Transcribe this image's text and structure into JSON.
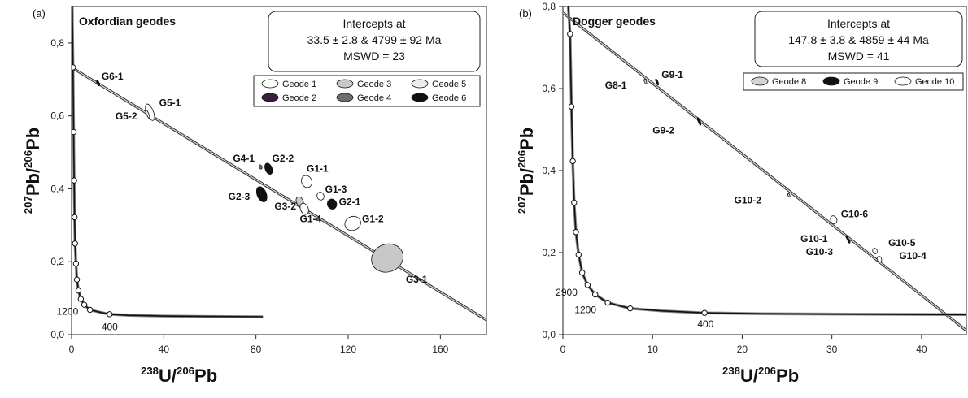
{
  "chart_data": [
    {
      "type": "scatter",
      "panel_label": "(a)",
      "title": "Oxfordian geodes",
      "xlabel": {
        "sup": "238",
        "main": "U/",
        "sup2": "206",
        "main2": "Pb"
      },
      "ylabel": {
        "sup": "207",
        "main": "Pb/",
        "sup2": "206",
        "main2": "Pb"
      },
      "xlim": [
        0,
        180
      ],
      "ylim": [
        0,
        0.9
      ],
      "xticks": [
        {
          "v": 0,
          "t": "0"
        },
        {
          "v": 40,
          "t": "40"
        },
        {
          "v": 80,
          "t": "80"
        },
        {
          "v": 120,
          "t": "120"
        },
        {
          "v": 160,
          "t": "160"
        }
      ],
      "yticks": [
        {
          "v": 0,
          "t": "0,0"
        },
        {
          "v": 0.2,
          "t": "0,2"
        },
        {
          "v": 0.4,
          "t": "0,4"
        },
        {
          "v": 0.6,
          "t": "0,6"
        },
        {
          "v": 0.8,
          "t": "0,8"
        }
      ],
      "intercepts_box": [
        "Intercepts at",
        "33.5 ± 2.8 & 4799 ± 92 Ma",
        "MSWD = 23"
      ],
      "discordia": {
        "start": [
          0,
          0.733
        ],
        "end": [
          180,
          0.04
        ]
      },
      "concordia": [
        [
          0.3,
          0.9
        ],
        [
          0.6,
          0.733
        ],
        [
          0.9,
          0.556
        ],
        [
          1.1,
          0.423
        ],
        [
          1.3,
          0.322
        ],
        [
          1.5,
          0.25
        ],
        [
          1.9,
          0.195
        ],
        [
          2.3,
          0.151
        ],
        [
          3.0,
          0.121
        ],
        [
          4.0,
          0.098
        ],
        [
          5.5,
          0.082
        ],
        [
          8.0,
          0.068
        ],
        [
          12,
          0.062
        ],
        [
          16.5,
          0.056
        ],
        [
          25,
          0.053
        ],
        [
          40,
          0.051
        ],
        [
          60,
          0.05
        ],
        [
          83,
          0.049
        ]
      ],
      "concordia_markers": [
        [
          0.6,
          0.733
        ],
        [
          0.9,
          0.556
        ],
        [
          1.1,
          0.423
        ],
        [
          1.3,
          0.322
        ],
        [
          1.5,
          0.25
        ],
        [
          1.9,
          0.195
        ],
        [
          2.3,
          0.151
        ],
        [
          3.0,
          0.121
        ],
        [
          4.0,
          0.098
        ],
        [
          5.5,
          0.082
        ],
        [
          8.0,
          0.068
        ],
        [
          16.5,
          0.056
        ]
      ],
      "age_labels": [
        {
          "t": "1200",
          "x": -6.5,
          "y": 0.055
        },
        {
          "t": "400",
          "x": 13,
          "y": 0.012
        }
      ],
      "legend": {
        "position": "top-right",
        "entries": [
          {
            "name": "Geode 1",
            "fill": "#ffffff"
          },
          {
            "name": "Geode 3",
            "fill": "#c8c8c8"
          },
          {
            "name": "Geode 5",
            "fill": "#ececec"
          },
          {
            "name": "Geode 2",
            "fill": "#3a1e3e"
          },
          {
            "name": "Geode 4",
            "fill": "#6e6e6e"
          },
          {
            "name": "Geode 6",
            "fill": "#111111"
          }
        ]
      },
      "points": [
        {
          "label": "G6-1",
          "x": 11.5,
          "y": 0.69,
          "rx": 0.5,
          "ry": 0.008,
          "fill": "#111111",
          "lx": 13,
          "ly": 0.7
        },
        {
          "label": "G5-1",
          "x": 34,
          "y": 0.61,
          "rx": 1.5,
          "ry": 0.024,
          "fill": "#ffffff",
          "lx": 38,
          "ly": 0.627
        },
        {
          "label": "G5-2",
          "x": 33,
          "y": 0.605,
          "rx": 0.5,
          "ry": 0.012,
          "fill": "#ececec",
          "lx": 19,
          "ly": 0.59
        },
        {
          "label": "G4-1",
          "x": 82,
          "y": 0.46,
          "rx": 0.6,
          "ry": 0.006,
          "fill": "#6e6e6e",
          "lx": 70,
          "ly": 0.475
        },
        {
          "label": "G2-2",
          "x": 85.5,
          "y": 0.455,
          "rx": 1.5,
          "ry": 0.016,
          "fill": "#111111",
          "lx": 87,
          "ly": 0.475
        },
        {
          "label": "G1-1",
          "x": 102,
          "y": 0.42,
          "rx": 2.2,
          "ry": 0.017,
          "fill": "#ffffff",
          "lx": 102,
          "ly": 0.447
        },
        {
          "label": "G2-3",
          "x": 82.5,
          "y": 0.385,
          "rx": 2,
          "ry": 0.022,
          "fill": "#111111",
          "lx": 68,
          "ly": 0.37
        },
        {
          "label": "G1-3",
          "x": 108,
          "y": 0.38,
          "rx": 1.5,
          "ry": 0.011,
          "fill": "#ffffff",
          "lx": 110,
          "ly": 0.39
        },
        {
          "label": "G3-2",
          "x": 99,
          "y": 0.365,
          "rx": 1.5,
          "ry": 0.014,
          "fill": "#c8c8c8",
          "lx": 88,
          "ly": 0.343
        },
        {
          "label": "G2-1",
          "x": 113,
          "y": 0.358,
          "rx": 2,
          "ry": 0.014,
          "fill": "#111111",
          "lx": 116,
          "ly": 0.355
        },
        {
          "label": "G1-4",
          "x": 101,
          "y": 0.345,
          "rx": 1.7,
          "ry": 0.016,
          "fill": "#ffffff",
          "lx": 99,
          "ly": 0.308
        },
        {
          "label": "G1-2",
          "x": 122,
          "y": 0.305,
          "rx": 3.5,
          "ry": 0.019,
          "fill": "#ffffff",
          "lx": 126,
          "ly": 0.308
        },
        {
          "label": "G3-1",
          "x": 137,
          "y": 0.21,
          "rx": 7,
          "ry": 0.038,
          "fill": "#c8c8c8",
          "lx": 145,
          "ly": 0.143
        }
      ]
    },
    {
      "type": "scatter",
      "panel_label": "(b)",
      "title": "Dogger geodes",
      "xlabel": {
        "sup": "238",
        "main": "U/",
        "sup2": "206",
        "main2": "Pb"
      },
      "ylabel": {
        "sup": "207",
        "main": "Pb/",
        "sup2": "206",
        "main2": "Pb"
      },
      "xlim": [
        0,
        45
      ],
      "ylim": [
        0,
        0.8
      ],
      "xticks": [
        {
          "v": 0,
          "t": "0"
        },
        {
          "v": 10,
          "t": "10"
        },
        {
          "v": 20,
          "t": "20"
        },
        {
          "v": 30,
          "t": "30"
        },
        {
          "v": 40,
          "t": "40"
        }
      ],
      "yticks": [
        {
          "v": 0,
          "t": "0,0"
        },
        {
          "v": 0.2,
          "t": "0,2"
        },
        {
          "v": 0.4,
          "t": "0,4"
        },
        {
          "v": 0.6,
          "t": "0,6"
        },
        {
          "v": 0.8,
          "t": "0,8"
        }
      ],
      "intercepts_box": [
        "Intercepts at",
        "147.8 ± 3.8 & 4859 ± 44 Ma",
        "MSWD = 41"
      ],
      "discordia": {
        "start": [
          0,
          0.785
        ],
        "end": [
          45,
          0.01
        ]
      },
      "concordia": [
        [
          0.6,
          0.8
        ],
        [
          0.8,
          0.733
        ],
        [
          0.95,
          0.556
        ],
        [
          1.1,
          0.423
        ],
        [
          1.25,
          0.322
        ],
        [
          1.45,
          0.25
        ],
        [
          1.75,
          0.195
        ],
        [
          2.15,
          0.151
        ],
        [
          2.75,
          0.121
        ],
        [
          3.6,
          0.098
        ],
        [
          5.0,
          0.078
        ],
        [
          7.5,
          0.064
        ],
        [
          11,
          0.058
        ],
        [
          15.8,
          0.053
        ],
        [
          22,
          0.051
        ],
        [
          32,
          0.05
        ],
        [
          45,
          0.049
        ]
      ],
      "concordia_markers": [
        [
          0.8,
          0.733
        ],
        [
          0.95,
          0.556
        ],
        [
          1.1,
          0.423
        ],
        [
          1.25,
          0.322
        ],
        [
          1.45,
          0.25
        ],
        [
          1.75,
          0.195
        ],
        [
          2.15,
          0.151
        ],
        [
          2.75,
          0.121
        ],
        [
          3.6,
          0.098
        ],
        [
          5.0,
          0.078
        ],
        [
          7.5,
          0.064
        ],
        [
          15.8,
          0.053
        ]
      ],
      "age_labels": [
        {
          "t": "2900",
          "x": -0.8,
          "y": 0.095
        },
        {
          "t": "1200",
          "x": 1.3,
          "y": 0.052
        },
        {
          "t": "400",
          "x": 15,
          "y": 0.018
        }
      ],
      "legend": {
        "position": "top-right",
        "entries": [
          {
            "name": "Geode 8",
            "fill": "#d4d4d4"
          },
          {
            "name": "Geode 9",
            "fill": "#111111"
          },
          {
            "name": "Geode 10",
            "fill": "#ffffff"
          }
        ]
      },
      "points": [
        {
          "label": "G8-1",
          "x": 9.2,
          "y": 0.617,
          "rx": 0.05,
          "ry": 0.006,
          "fill": "#d4d4d4",
          "lx": 4.7,
          "ly": 0.6
        },
        {
          "label": "G9-1",
          "x": 10.5,
          "y": 0.616,
          "rx": 0.1,
          "ry": 0.008,
          "fill": "#111111",
          "lx": 11,
          "ly": 0.626
        },
        {
          "label": "G9-2",
          "x": 15.2,
          "y": 0.52,
          "rx": 0.12,
          "ry": 0.01,
          "fill": "#111111",
          "lx": 10,
          "ly": 0.49
        },
        {
          "label": "G10-2",
          "x": 25.2,
          "y": 0.34,
          "rx": 0.06,
          "ry": 0.004,
          "fill": "#d4d4d4",
          "lx": 19.1,
          "ly": 0.32
        },
        {
          "label": "G10-6",
          "x": 30.2,
          "y": 0.28,
          "rx": 0.35,
          "ry": 0.01,
          "fill": "#ffffff",
          "lx": 31,
          "ly": 0.286
        },
        {
          "label": "G10-1",
          "x": 31.7,
          "y": 0.237,
          "rx": 0.08,
          "ry": 0.005,
          "fill": "#111111",
          "lx": 26.5,
          "ly": 0.226
        },
        {
          "label": "G10-3",
          "x": 31.9,
          "y": 0.228,
          "rx": 0.08,
          "ry": 0.005,
          "fill": "#111111",
          "lx": 27.1,
          "ly": 0.194
        },
        {
          "label": "G10-5",
          "x": 34.8,
          "y": 0.204,
          "rx": 0.25,
          "ry": 0.007,
          "fill": "#ffffff",
          "lx": 36.3,
          "ly": 0.216
        },
        {
          "label": "G10-4",
          "x": 35.3,
          "y": 0.184,
          "rx": 0.25,
          "ry": 0.007,
          "fill": "#ffffff",
          "lx": 37.5,
          "ly": 0.184
        }
      ]
    }
  ]
}
